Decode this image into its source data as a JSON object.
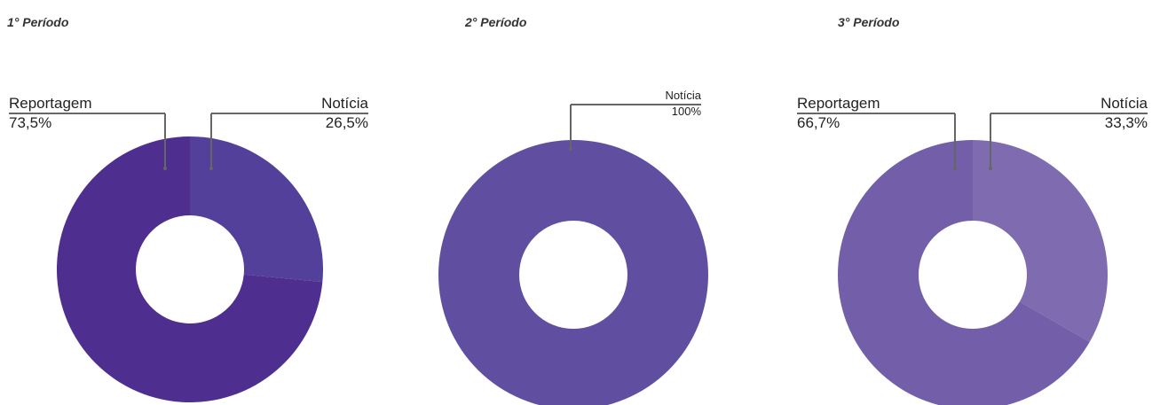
{
  "chart_data": [
    {
      "type": "donut",
      "title": "1° Período",
      "categories": [
        "Notícia",
        "Reportagem"
      ],
      "values": [
        26.5,
        73.5
      ],
      "value_labels": [
        "26,5%",
        "73,5%"
      ],
      "colors": [
        "#52409a",
        "#4e2f8f"
      ]
    },
    {
      "type": "donut",
      "title": "2° Período",
      "categories": [
        "Notícia"
      ],
      "values": [
        100
      ],
      "value_labels": [
        "100%"
      ],
      "colors": [
        "#604fa0"
      ]
    },
    {
      "type": "donut",
      "title": "3° Período",
      "categories": [
        "Notícia",
        "Reportagem"
      ],
      "values": [
        33.3,
        66.7
      ],
      "value_labels": [
        "33,3%",
        "66,7%"
      ],
      "colors": [
        "#7e6bb0",
        "#735fa9"
      ]
    }
  ]
}
